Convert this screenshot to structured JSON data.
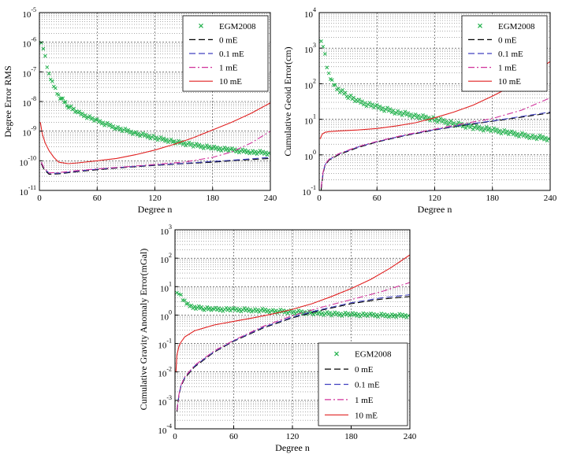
{
  "chart_data": [
    {
      "type": "line",
      "yscale": "log",
      "xlim": [
        0,
        240
      ],
      "ylim_exp": [
        -11,
        -5
      ],
      "xticks": [
        0,
        60,
        120,
        180,
        240
      ],
      "xtick_labels": [
        "0",
        "60",
        "120",
        "180",
        "240"
      ],
      "ytick_labels": [
        "10^-11",
        "10^-10",
        "10^-9",
        "10^-8",
        "10^-7",
        "10^-6",
        "10^-5"
      ],
      "xlabel": "Degree n",
      "ylabel": "Degree Error RMS",
      "grid": true,
      "legend_position": "top-right",
      "series": [
        {
          "name": "EGM2008",
          "style": "x-markers",
          "color": "#22b14c",
          "points": [
            [
              2,
              1.1e-06
            ],
            [
              4,
              6e-07
            ],
            [
              6,
              3e-07
            ],
            [
              8,
              1.5e-07
            ],
            [
              10,
              8e-08
            ],
            [
              15,
              3.5e-08
            ],
            [
              20,
              1.6e-08
            ],
            [
              30,
              7e-09
            ],
            [
              40,
              4.2e-09
            ],
            [
              60,
              2.2e-09
            ],
            [
              80,
              1.3e-09
            ],
            [
              100,
              8.5e-10
            ],
            [
              120,
              6e-10
            ],
            [
              140,
              4.4e-10
            ],
            [
              160,
              3.4e-10
            ],
            [
              180,
              2.7e-10
            ],
            [
              200,
              2.3e-10
            ],
            [
              220,
              2e-10
            ],
            [
              240,
              1.8e-10
            ]
          ]
        },
        {
          "name": "0 mE",
          "style": "dash",
          "color": "#000000",
          "points": [
            [
              2,
              8e-11
            ],
            [
              5,
              5e-11
            ],
            [
              10,
              3.5e-11
            ],
            [
              20,
              3.6e-11
            ],
            [
              40,
              4.3e-11
            ],
            [
              60,
              5e-11
            ],
            [
              90,
              6e-11
            ],
            [
              120,
              7e-11
            ],
            [
              150,
              8e-11
            ],
            [
              180,
              9e-11
            ],
            [
              210,
              1.05e-10
            ],
            [
              240,
              1.2e-10
            ]
          ]
        },
        {
          "name": "0.1 mE",
          "style": "dash",
          "color": "#4040c0",
          "points": [
            [
              2,
              9e-11
            ],
            [
              5,
              5.5e-11
            ],
            [
              10,
              3.8e-11
            ],
            [
              20,
              3.8e-11
            ],
            [
              40,
              4.5e-11
            ],
            [
              60,
              5.2e-11
            ],
            [
              90,
              6.2e-11
            ],
            [
              120,
              7.2e-11
            ],
            [
              150,
              8.2e-11
            ],
            [
              180,
              9.5e-11
            ],
            [
              210,
              1.1e-10
            ],
            [
              240,
              1.3e-10
            ]
          ]
        },
        {
          "name": "1 mE",
          "style": "dashdot",
          "color": "#d0309a",
          "points": [
            [
              2,
              9e-11
            ],
            [
              5,
              5.5e-11
            ],
            [
              10,
              3.9e-11
            ],
            [
              20,
              4e-11
            ],
            [
              40,
              4.7e-11
            ],
            [
              60,
              5.3e-11
            ],
            [
              90,
              6.3e-11
            ],
            [
              120,
              7.5e-11
            ],
            [
              150,
              9e-11
            ],
            [
              180,
              1.3e-10
            ],
            [
              200,
              2e-10
            ],
            [
              220,
              4e-10
            ],
            [
              240,
              1e-09
            ]
          ]
        },
        {
          "name": "10 mE",
          "style": "solid",
          "color": "#e02020",
          "points": [
            [
              1,
              2e-09
            ],
            [
              3,
              8e-10
            ],
            [
              6,
              4e-10
            ],
            [
              10,
              2.2e-10
            ],
            [
              15,
              1.3e-10
            ],
            [
              20,
              9e-11
            ],
            [
              30,
              8e-11
            ],
            [
              40,
              8.5e-11
            ],
            [
              60,
              1e-10
            ],
            [
              80,
              1.2e-10
            ],
            [
              100,
              1.6e-10
            ],
            [
              120,
              2.3e-10
            ],
            [
              140,
              3.6e-10
            ],
            [
              160,
              6e-10
            ],
            [
              180,
              1.1e-09
            ],
            [
              200,
              2e-09
            ],
            [
              220,
              4e-09
            ],
            [
              240,
              9e-09
            ]
          ]
        }
      ]
    },
    {
      "type": "line",
      "yscale": "log",
      "xlim": [
        0,
        240
      ],
      "ylim_exp": [
        -1,
        4
      ],
      "xticks": [
        0,
        60,
        120,
        180,
        240
      ],
      "xtick_labels": [
        "0",
        "60",
        "120",
        "180",
        "240"
      ],
      "ytick_labels": [
        "10^-1",
        "10^0",
        "10^1",
        "10^2",
        "10^3",
        "10^4"
      ],
      "xlabel": "Degree n",
      "ylabel": "Cumulative Geoid Error(cm)",
      "grid": true,
      "legend_position": "top-right",
      "series": [
        {
          "name": "EGM2008",
          "style": "x-markers",
          "color": "#22b14c",
          "points": [
            [
              2,
              1800
            ],
            [
              4,
              1100
            ],
            [
              6,
              600
            ],
            [
              8,
              300
            ],
            [
              10,
              180
            ],
            [
              15,
              100
            ],
            [
              20,
              70
            ],
            [
              30,
              45
            ],
            [
              40,
              32
            ],
            [
              60,
              22
            ],
            [
              80,
              16
            ],
            [
              100,
              12.5
            ],
            [
              120,
              10
            ],
            [
              140,
              7.5
            ],
            [
              160,
              6
            ],
            [
              180,
              5
            ],
            [
              200,
              4
            ],
            [
              220,
              3.3
            ],
            [
              240,
              2.8
            ]
          ]
        },
        {
          "name": "0 mE",
          "style": "dash",
          "color": "#000000",
          "points": [
            [
              2,
              0.1
            ],
            [
              4,
              0.3
            ],
            [
              6,
              0.5
            ],
            [
              10,
              0.7
            ],
            [
              20,
              1.0
            ],
            [
              40,
              1.6
            ],
            [
              60,
              2.3
            ],
            [
              90,
              3.5
            ],
            [
              120,
              5
            ],
            [
              150,
              6.8
            ],
            [
              180,
              8.8
            ],
            [
              210,
              11.5
            ],
            [
              240,
              15
            ]
          ]
        },
        {
          "name": "0.1 mE",
          "style": "dash",
          "color": "#4040c0",
          "points": [
            [
              2,
              0.12
            ],
            [
              4,
              0.32
            ],
            [
              6,
              0.52
            ],
            [
              10,
              0.72
            ],
            [
              20,
              1.05
            ],
            [
              40,
              1.65
            ],
            [
              60,
              2.35
            ],
            [
              90,
              3.6
            ],
            [
              120,
              5.1
            ],
            [
              150,
              7
            ],
            [
              180,
              9
            ],
            [
              210,
              12
            ],
            [
              240,
              16
            ]
          ]
        },
        {
          "name": "1 mE",
          "style": "dashdot",
          "color": "#d0309a",
          "points": [
            [
              2,
              0.12
            ],
            [
              4,
              0.33
            ],
            [
              6,
              0.54
            ],
            [
              10,
              0.74
            ],
            [
              20,
              1.07
            ],
            [
              40,
              1.7
            ],
            [
              60,
              2.4
            ],
            [
              90,
              3.7
            ],
            [
              120,
              5.3
            ],
            [
              150,
              7.5
            ],
            [
              180,
              10.5
            ],
            [
              210,
              18
            ],
            [
              240,
              40
            ]
          ]
        },
        {
          "name": "10 mE",
          "style": "solid",
          "color": "#e02020",
          "points": [
            [
              1,
              2.8
            ],
            [
              3,
              3.8
            ],
            [
              6,
              4.3
            ],
            [
              10,
              4.5
            ],
            [
              20,
              4.7
            ],
            [
              40,
              5
            ],
            [
              60,
              5.5
            ],
            [
              80,
              6.5
            ],
            [
              100,
              8
            ],
            [
              120,
              11
            ],
            [
              140,
              16
            ],
            [
              160,
              25
            ],
            [
              180,
              45
            ],
            [
              200,
              85
            ],
            [
              220,
              180
            ],
            [
              240,
              420
            ]
          ]
        }
      ]
    },
    {
      "type": "line",
      "yscale": "log",
      "xlim": [
        0,
        240
      ],
      "ylim_exp": [
        -4,
        3
      ],
      "xticks": [
        0,
        60,
        120,
        180,
        240
      ],
      "xtick_labels": [
        "0",
        "60",
        "120",
        "180",
        "240"
      ],
      "ytick_labels": [
        "10^-4",
        "10^-3",
        "10^-2",
        "10^-1",
        "10^0",
        "10^1",
        "10^2",
        "10^3"
      ],
      "xlabel": "Degree n",
      "ylabel": "Cumulative Gravity Anomaly Error(mGal)",
      "grid": true,
      "legend_position": "bottom-right",
      "series": [
        {
          "name": "EGM2008",
          "style": "x-markers",
          "color": "#22b14c",
          "points": [
            [
              2,
              7
            ],
            [
              4,
              5.5
            ],
            [
              6,
              4.5
            ],
            [
              8,
              3.5
            ],
            [
              10,
              3
            ],
            [
              15,
              2.2
            ],
            [
              20,
              1.9
            ],
            [
              30,
              1.7
            ],
            [
              40,
              1.6
            ],
            [
              60,
              1.55
            ],
            [
              80,
              1.5
            ],
            [
              100,
              1.4
            ],
            [
              120,
              1.3
            ],
            [
              140,
              1.2
            ],
            [
              160,
              1.1
            ],
            [
              180,
              1.05
            ],
            [
              200,
              1.0
            ],
            [
              220,
              0.98
            ],
            [
              240,
              0.95
            ]
          ]
        },
        {
          "name": "0 mE",
          "style": "dash",
          "color": "#000000",
          "points": [
            [
              2,
              0.0004
            ],
            [
              4,
              0.0015
            ],
            [
              6,
              0.003
            ],
            [
              10,
              0.006
            ],
            [
              20,
              0.015
            ],
            [
              40,
              0.05
            ],
            [
              60,
              0.12
            ],
            [
              90,
              0.35
            ],
            [
              120,
              0.8
            ],
            [
              150,
              1.5
            ],
            [
              180,
              2.5
            ],
            [
              210,
              3.6
            ],
            [
              240,
              4.5
            ]
          ]
        },
        {
          "name": "0.1 mE",
          "style": "dash",
          "color": "#4040c0",
          "points": [
            [
              2,
              0.00045
            ],
            [
              4,
              0.0016
            ],
            [
              6,
              0.0032
            ],
            [
              10,
              0.0065
            ],
            [
              20,
              0.016
            ],
            [
              40,
              0.052
            ],
            [
              60,
              0.125
            ],
            [
              90,
              0.37
            ],
            [
              120,
              0.85
            ],
            [
              150,
              1.6
            ],
            [
              180,
              2.7
            ],
            [
              210,
              4
            ],
            [
              240,
              5.2
            ]
          ]
        },
        {
          "name": "1 mE",
          "style": "dashdot",
          "color": "#d0309a",
          "points": [
            [
              2,
              0.00045
            ],
            [
              4,
              0.0016
            ],
            [
              6,
              0.0033
            ],
            [
              10,
              0.0067
            ],
            [
              20,
              0.017
            ],
            [
              40,
              0.055
            ],
            [
              60,
              0.13
            ],
            [
              90,
              0.4
            ],
            [
              120,
              0.95
            ],
            [
              150,
              1.9
            ],
            [
              180,
              3.5
            ],
            [
              210,
              6.5
            ],
            [
              240,
              14
            ]
          ]
        },
        {
          "name": "10 mE",
          "style": "solid",
          "color": "#e02020",
          "points": [
            [
              1,
              0.01
            ],
            [
              2,
              0.04
            ],
            [
              4,
              0.08
            ],
            [
              6,
              0.11
            ],
            [
              10,
              0.17
            ],
            [
              20,
              0.28
            ],
            [
              40,
              0.45
            ],
            [
              60,
              0.6
            ],
            [
              80,
              0.8
            ],
            [
              100,
              1.1
            ],
            [
              120,
              1.6
            ],
            [
              140,
              2.5
            ],
            [
              160,
              4.5
            ],
            [
              180,
              8.5
            ],
            [
              200,
              18
            ],
            [
              220,
              45
            ],
            [
              240,
              130
            ]
          ]
        }
      ]
    }
  ]
}
